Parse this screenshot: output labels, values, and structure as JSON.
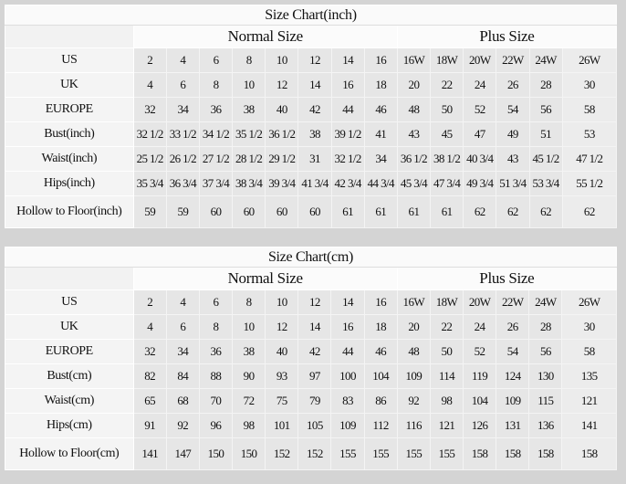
{
  "charts": [
    {
      "id": "chart-inch",
      "title": "Size Chart(inch)",
      "normal_label": "Normal Size",
      "plus_label": "Plus Size",
      "rows": [
        {
          "label": "US",
          "values": [
            "2",
            "4",
            "6",
            "8",
            "10",
            "12",
            "14",
            "16",
            "16W",
            "18W",
            "20W",
            "22W",
            "24W",
            "26W"
          ]
        },
        {
          "label": "UK",
          "values": [
            "4",
            "6",
            "8",
            "10",
            "12",
            "14",
            "16",
            "18",
            "20",
            "22",
            "24",
            "26",
            "28",
            "30"
          ]
        },
        {
          "label": "EUROPE",
          "values": [
            "32",
            "34",
            "36",
            "38",
            "40",
            "42",
            "44",
            "46",
            "48",
            "50",
            "52",
            "54",
            "56",
            "58"
          ]
        },
        {
          "label": "Bust(inch)",
          "values": [
            "32 1/2",
            "33 1/2",
            "34 1/2",
            "35 1/2",
            "36 1/2",
            "38",
            "39 1/2",
            "41",
            "43",
            "45",
            "47",
            "49",
            "51",
            "53"
          ]
        },
        {
          "label": "Waist(inch)",
          "values": [
            "25 1/2",
            "26 1/2",
            "27 1/2",
            "28 1/2",
            "29 1/2",
            "31",
            "32 1/2",
            "34",
            "36 1/2",
            "38 1/2",
            "40 3/4",
            "43",
            "45 1/2",
            "47 1/2"
          ]
        },
        {
          "label": "Hips(inch)",
          "values": [
            "35 3/4",
            "36 3/4",
            "37 3/4",
            "38 3/4",
            "39 3/4",
            "41 3/4",
            "42 3/4",
            "44 3/4",
            "45 3/4",
            "47 3/4",
            "49 3/4",
            "51 3/4",
            "53 3/4",
            "55 1/2"
          ]
        },
        {
          "label": "Hollow to Floor(inch)",
          "values": [
            "59",
            "59",
            "60",
            "60",
            "60",
            "60",
            "61",
            "61",
            "61",
            "61",
            "62",
            "62",
            "62",
            "62"
          ]
        }
      ]
    },
    {
      "id": "chart-cm",
      "title": "Size Chart(cm)",
      "normal_label": "Normal Size",
      "plus_label": "Plus Size",
      "rows": [
        {
          "label": "US",
          "values": [
            "2",
            "4",
            "6",
            "8",
            "10",
            "12",
            "14",
            "16",
            "16W",
            "18W",
            "20W",
            "22W",
            "24W",
            "26W"
          ]
        },
        {
          "label": "UK",
          "values": [
            "4",
            "6",
            "8",
            "10",
            "12",
            "14",
            "16",
            "18",
            "20",
            "22",
            "24",
            "26",
            "28",
            "30"
          ]
        },
        {
          "label": "EUROPE",
          "values": [
            "32",
            "34",
            "36",
            "38",
            "40",
            "42",
            "44",
            "46",
            "48",
            "50",
            "52",
            "54",
            "56",
            "58"
          ]
        },
        {
          "label": "Bust(cm)",
          "values": [
            "82",
            "84",
            "88",
            "90",
            "93",
            "97",
            "100",
            "104",
            "109",
            "114",
            "119",
            "124",
            "130",
            "135"
          ]
        },
        {
          "label": "Waist(cm)",
          "values": [
            "65",
            "68",
            "70",
            "72",
            "75",
            "79",
            "83",
            "86",
            "92",
            "98",
            "104",
            "109",
            "115",
            "121"
          ]
        },
        {
          "label": "Hips(cm)",
          "values": [
            "91",
            "92",
            "96",
            "98",
            "101",
            "105",
            "109",
            "112",
            "116",
            "121",
            "126",
            "131",
            "136",
            "141"
          ]
        },
        {
          "label": "Hollow to Floor(cm)",
          "values": [
            "141",
            "147",
            "150",
            "150",
            "152",
            "152",
            "155",
            "155",
            "155",
            "155",
            "158",
            "158",
            "158",
            "158"
          ]
        }
      ]
    }
  ]
}
